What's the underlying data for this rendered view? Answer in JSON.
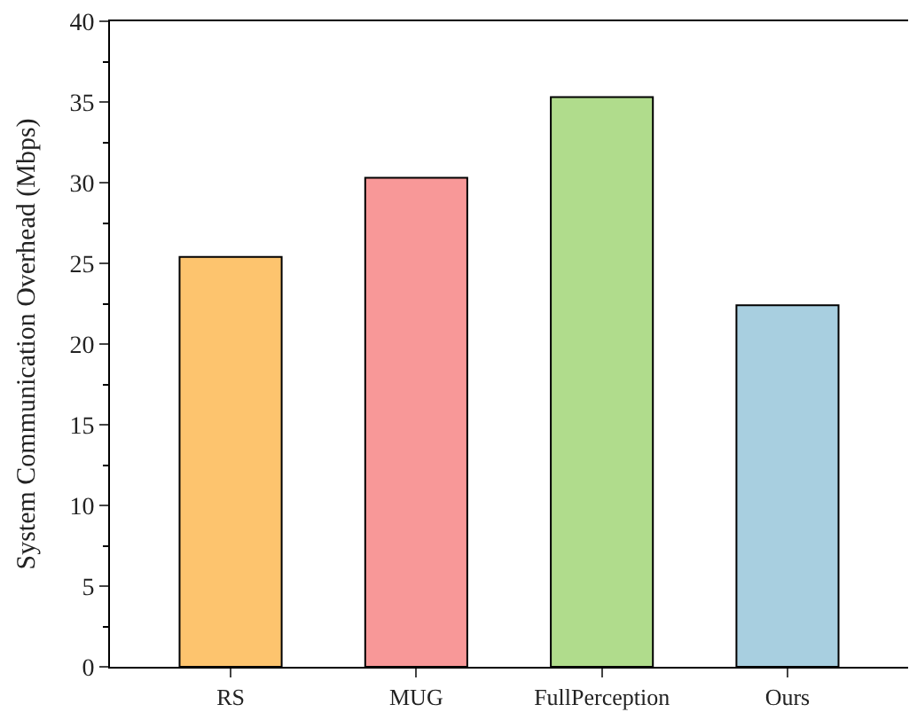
{
  "chart_data": {
    "type": "bar",
    "ylabel": "System Communication Overhead (Mbps)",
    "categories": [
      "RS",
      "MUG",
      "FullPerception",
      "Ours"
    ],
    "values": [
      25.4,
      30.3,
      35.3,
      22.4
    ],
    "colors": [
      "#fdc46e",
      "#f89898",
      "#b0dc8c",
      "#a8cfe0"
    ],
    "ylim": [
      0,
      40
    ],
    "yticks": [
      0,
      5,
      10,
      15,
      20,
      25,
      30,
      35,
      40
    ]
  }
}
